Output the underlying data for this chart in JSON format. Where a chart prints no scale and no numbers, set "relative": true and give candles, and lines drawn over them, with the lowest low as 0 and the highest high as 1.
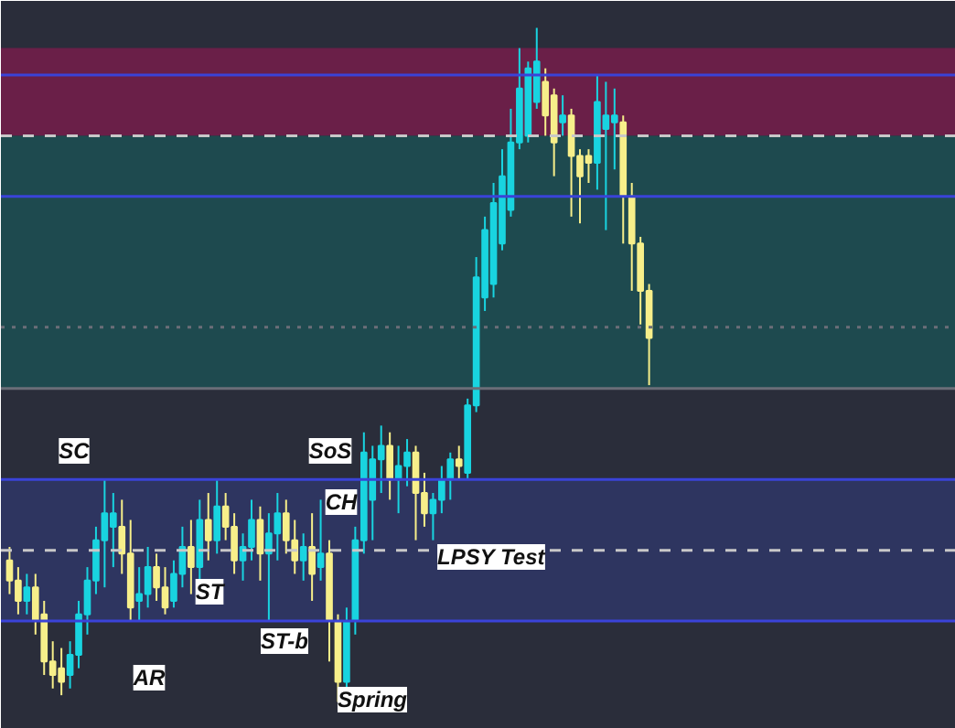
{
  "chart_data": {
    "type": "candlestick",
    "relative": true,
    "grid": false,
    "tick_labels": false,
    "categories": [
      null,
      null,
      null,
      null,
      null,
      null,
      null,
      null,
      null,
      null,
      null,
      null,
      null,
      null,
      null,
      null,
      null,
      null,
      null,
      null,
      null,
      null,
      null,
      null,
      null,
      null,
      null,
      null,
      null,
      null,
      null,
      null,
      null,
      null,
      null,
      null,
      null,
      null,
      null,
      null,
      null,
      null,
      null,
      null,
      null,
      null,
      null,
      null,
      null,
      null,
      null,
      null,
      null,
      null,
      null,
      null,
      null,
      null,
      null,
      null,
      null,
      null,
      null,
      null,
      null,
      null,
      null,
      null,
      null,
      null,
      null,
      null,
      null,
      null,
      null
    ],
    "colors": [
      "#f7ef8a",
      "#f7ef8a",
      "#19d4e0",
      "#f7ef8a",
      "#f7ef8a",
      "#f7ef8a",
      "#f7ef8a",
      "#19d4e0",
      "#19d4e0",
      "#19d4e0",
      "#19d4e0",
      "#19d4e0",
      "#19d4e0",
      "#f7ef8a",
      "#f7ef8a",
      "#19d4e0",
      "#19d4e0",
      "#f7ef8a",
      "#f7ef8a",
      "#19d4e0",
      "#19d4e0",
      "#f7ef8a",
      "#19d4e0",
      "#f7ef8a",
      "#19d4e0",
      "#f7ef8a",
      "#f7ef8a",
      "#19d4e0",
      "#19d4e0",
      "#f7ef8a",
      "#19d4e0",
      "#19d4e0",
      "#f7ef8a",
      "#f7ef8a",
      "#19d4e0",
      "#f7ef8a",
      "#19d4e0",
      "#f7ef8a",
      "#f7ef8a",
      "#19d4e0",
      "#19d4e0",
      "#19d4e0",
      "#19d4e0",
      "#19d4e0",
      "#f7ef8a",
      "#19d4e0",
      "#19d4e0",
      "#f7ef8a",
      "#f7ef8a",
      "#19d4e0",
      "#19d4e0",
      "#19d4e0",
      "#f7ef8a",
      "#19d4e0",
      "#19d4e0",
      "#19d4e0",
      "#19d4e0",
      "#19d4e0",
      "#19d4e0",
      "#19d4e0",
      "#19d4e0",
      "#19d4e0",
      "#f7ef8a",
      "#f7ef8a",
      "#19d4e0",
      "#f7ef8a",
      "#f7ef8a",
      "#f7ef8a",
      "#19d4e0",
      "#19d4e0",
      "#19d4e0",
      "#f7ef8a",
      "#f7ef8a",
      "#f7ef8a",
      "#f7ef8a"
    ],
    "ohlc": [
      [
        0.21,
        0.23,
        0.16,
        0.18
      ],
      [
        0.18,
        0.2,
        0.13,
        0.15
      ],
      [
        0.15,
        0.19,
        0.13,
        0.17
      ],
      [
        0.17,
        0.19,
        0.1,
        0.12
      ],
      [
        0.13,
        0.15,
        0.04,
        0.06
      ],
      [
        0.06,
        0.09,
        0.02,
        0.04
      ],
      [
        0.05,
        0.08,
        0.01,
        0.03
      ],
      [
        0.04,
        0.09,
        0.02,
        0.07
      ],
      [
        0.07,
        0.15,
        0.05,
        0.13
      ],
      [
        0.13,
        0.2,
        0.1,
        0.18
      ],
      [
        0.18,
        0.26,
        0.16,
        0.24
      ],
      [
        0.24,
        0.33,
        0.17,
        0.28
      ],
      [
        0.26,
        0.31,
        0.2,
        0.28
      ],
      [
        0.26,
        0.3,
        0.19,
        0.22
      ],
      [
        0.22,
        0.27,
        0.12,
        0.14
      ],
      [
        0.15,
        0.2,
        0.12,
        0.16
      ],
      [
        0.16,
        0.23,
        0.14,
        0.2
      ],
      [
        0.2,
        0.22,
        0.15,
        0.17
      ],
      [
        0.17,
        0.2,
        0.13,
        0.14
      ],
      [
        0.15,
        0.21,
        0.14,
        0.19
      ],
      [
        0.19,
        0.26,
        0.17,
        0.23
      ],
      [
        0.23,
        0.27,
        0.16,
        0.2
      ],
      [
        0.2,
        0.3,
        0.18,
        0.27
      ],
      [
        0.27,
        0.31,
        0.21,
        0.24
      ],
      [
        0.24,
        0.33,
        0.22,
        0.29
      ],
      [
        0.29,
        0.31,
        0.24,
        0.26
      ],
      [
        0.26,
        0.28,
        0.19,
        0.21
      ],
      [
        0.21,
        0.25,
        0.18,
        0.23
      ],
      [
        0.23,
        0.3,
        0.21,
        0.27
      ],
      [
        0.27,
        0.29,
        0.18,
        0.22
      ],
      [
        0.22,
        0.28,
        0.12,
        0.25
      ],
      [
        0.25,
        0.31,
        0.21,
        0.28
      ],
      [
        0.28,
        0.3,
        0.22,
        0.24
      ],
      [
        0.24,
        0.27,
        0.19,
        0.21
      ],
      [
        0.21,
        0.25,
        0.18,
        0.23
      ],
      [
        0.23,
        0.28,
        0.15,
        0.19
      ],
      [
        0.2,
        0.3,
        0.18,
        0.22
      ],
      [
        0.22,
        0.24,
        0.06,
        0.12
      ],
      [
        0.12,
        0.13,
        0.0,
        0.03
      ],
      [
        0.03,
        0.14,
        0.02,
        0.12
      ],
      [
        0.12,
        0.26,
        0.1,
        0.24
      ],
      [
        0.24,
        0.4,
        0.22,
        0.37
      ],
      [
        0.3,
        0.38,
        0.24,
        0.36
      ],
      [
        0.36,
        0.41,
        0.31,
        0.38
      ],
      [
        0.38,
        0.4,
        0.3,
        0.33
      ],
      [
        0.33,
        0.38,
        0.28,
        0.35
      ],
      [
        0.35,
        0.39,
        0.32,
        0.37
      ],
      [
        0.37,
        0.38,
        0.24,
        0.31
      ],
      [
        0.31,
        0.34,
        0.26,
        0.28
      ],
      [
        0.28,
        0.31,
        0.24,
        0.3
      ],
      [
        0.3,
        0.35,
        0.28,
        0.33
      ],
      [
        0.33,
        0.37,
        0.3,
        0.36
      ],
      [
        0.36,
        0.38,
        0.33,
        0.35
      ],
      [
        0.34,
        0.45,
        0.33,
        0.44
      ],
      [
        0.44,
        0.66,
        0.43,
        0.63
      ],
      [
        0.6,
        0.72,
        0.58,
        0.7
      ],
      [
        0.62,
        0.77,
        0.6,
        0.74
      ],
      [
        0.68,
        0.82,
        0.67,
        0.78
      ],
      [
        0.73,
        0.88,
        0.72,
        0.83
      ],
      [
        0.83,
        0.97,
        0.82,
        0.91
      ],
      [
        0.84,
        0.95,
        0.83,
        0.94
      ],
      [
        0.89,
        1.0,
        0.88,
        0.95
      ],
      [
        0.92,
        0.94,
        0.84,
        0.87
      ],
      [
        0.9,
        0.91,
        0.78,
        0.83
      ],
      [
        0.86,
        0.9,
        0.84,
        0.87
      ],
      [
        0.87,
        0.88,
        0.72,
        0.81
      ],
      [
        0.81,
        0.82,
        0.71,
        0.78
      ],
      [
        0.81,
        0.82,
        0.77,
        0.8
      ],
      [
        0.8,
        0.93,
        0.76,
        0.89
      ],
      [
        0.85,
        0.92,
        0.7,
        0.87
      ],
      [
        0.86,
        0.91,
        0.79,
        0.87
      ],
      [
        0.86,
        0.87,
        0.68,
        0.75
      ],
      [
        0.75,
        0.77,
        0.61,
        0.68
      ],
      [
        0.68,
        0.69,
        0.56,
        0.61
      ],
      [
        0.61,
        0.62,
        0.47,
        0.54
      ]
    ],
    "bands": [
      {
        "axis": "y",
        "from": 0.12,
        "to": 0.33,
        "color": "#2e3560"
      },
      {
        "axis": "y",
        "from": 0.84,
        "to": 0.97,
        "color": "#6a1f48"
      },
      {
        "axis": "y",
        "from": 0.465,
        "to": 0.84,
        "color": "#1e4a4f"
      }
    ],
    "ref_lines": [
      {
        "axis": "y",
        "value": 0.33,
        "color": "#3a43d8"
      },
      {
        "axis": "y",
        "value": 0.12,
        "color": "#3a43d8"
      },
      {
        "axis": "y",
        "value": 0.225,
        "color": "#c8c8c8",
        "line_style": "dashed"
      },
      {
        "axis": "y",
        "value": 0.93,
        "color": "#3a43d8"
      },
      {
        "axis": "y",
        "value": 0.75,
        "color": "#3a43d8"
      },
      {
        "axis": "y",
        "value": 0.84,
        "color": "#c8c8c8",
        "line_style": "dashed"
      },
      {
        "axis": "y",
        "value": 0.465,
        "color": "#6b6e78"
      },
      {
        "axis": "y",
        "value": 0.556,
        "color": "#6b6e78",
        "line_style": "dotted"
      }
    ],
    "annotations": [
      "SC",
      "AR",
      "ST",
      "ST-b",
      "Spring",
      "SoS",
      "CH",
      "LPSY Test"
    ]
  }
}
